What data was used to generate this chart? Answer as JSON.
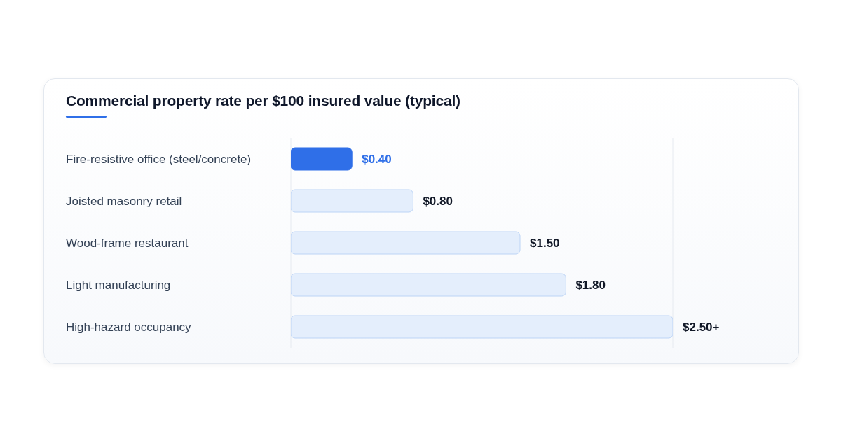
{
  "chart_data": {
    "type": "bar",
    "orientation": "horizontal",
    "title": "Commercial property rate per $100 insured value (typical)",
    "categories": [
      "Fire-resistive office (steel/concrete)",
      "Joisted masonry retail",
      "Wood-frame restaurant",
      "Light manufacturing",
      "High-hazard occupancy"
    ],
    "values": [
      0.4,
      0.8,
      1.5,
      1.8,
      2.5
    ],
    "value_labels": [
      "$0.40",
      "$0.80",
      "$1.50",
      "$1.80",
      "$2.50+"
    ],
    "colors": [
      "#2f6fe8",
      "#e4eefc",
      "#e4eefc",
      "#e4eefc",
      "#e4eefc"
    ],
    "xlim": [
      0,
      2.5
    ],
    "grid": "x",
    "tick_labels": "y",
    "legend": false
  }
}
